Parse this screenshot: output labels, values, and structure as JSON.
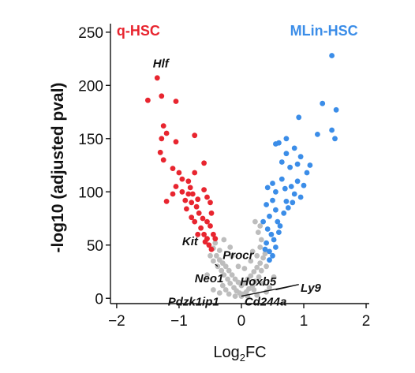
{
  "chart_data": {
    "type": "scatter",
    "xlabel_main": "Log",
    "xlabel_sub": "2",
    "xlabel_tail": "FC",
    "ylabel": "-log10 (adjusted pval)",
    "xlim": [
      -2.1,
      2.05
    ],
    "ylim": [
      -5,
      258
    ],
    "x_ticks": [
      -2,
      -1,
      0,
      1,
      2
    ],
    "x_tick_labels": [
      "−2",
      "−1",
      "0",
      "1",
      "2"
    ],
    "y_ticks": [
      0,
      50,
      100,
      150,
      200,
      250
    ],
    "y_tick_labels": [
      "0",
      "50",
      "100",
      "150",
      "200",
      "250"
    ],
    "grid": false,
    "legend": "none",
    "group_labels": [
      {
        "text": "q-HSC",
        "color": "#e8252f",
        "x": -2.0,
        "y": 247
      },
      {
        "text": "MLin-HSC",
        "color": "#3b8de8",
        "x": 0.78,
        "y": 247
      }
    ],
    "colors": {
      "up": "#e8252f",
      "down": "#3b8de8",
      "ns": "#bdbdbd"
    },
    "series": [
      {
        "name": "q-HSC",
        "color": "#e8252f",
        "points": [
          [
            -1.35,
            207
          ],
          [
            -1.5,
            186
          ],
          [
            -1.28,
            190
          ],
          [
            -1.05,
            185
          ],
          [
            -1.25,
            162
          ],
          [
            -1.2,
            155
          ],
          [
            -1.28,
            150
          ],
          [
            -1.05,
            147
          ],
          [
            -0.75,
            153
          ],
          [
            -1.3,
            137
          ],
          [
            -1.25,
            130
          ],
          [
            -1.1,
            122
          ],
          [
            -1.0,
            118
          ],
          [
            -0.95,
            112
          ],
          [
            -0.85,
            110
          ],
          [
            -0.75,
            118
          ],
          [
            -0.6,
            127
          ],
          [
            -1.05,
            105
          ],
          [
            -0.95,
            100
          ],
          [
            -0.85,
            98
          ],
          [
            -0.9,
            92
          ],
          [
            -0.8,
            90
          ],
          [
            -0.72,
            86
          ],
          [
            -0.6,
            102
          ],
          [
            -0.55,
            95
          ],
          [
            -0.5,
            90
          ],
          [
            -1.1,
            98
          ],
          [
            -1.2,
            91
          ],
          [
            -0.68,
            80
          ],
          [
            -0.62,
            75
          ],
          [
            -0.75,
            72
          ],
          [
            -0.55,
            72
          ],
          [
            -0.5,
            68
          ],
          [
            -0.65,
            66
          ],
          [
            -0.6,
            60
          ],
          [
            -0.55,
            56
          ],
          [
            -0.52,
            50
          ],
          [
            -0.48,
            46
          ],
          [
            -0.58,
            53
          ],
          [
            -0.7,
            60
          ],
          [
            -0.45,
            60
          ],
          [
            -0.42,
            56
          ],
          [
            -0.8,
            76
          ],
          [
            -0.88,
            84
          ],
          [
            -0.7,
            93
          ],
          [
            -0.78,
            98
          ],
          [
            -0.82,
            104
          ],
          [
            -0.48,
            80
          ]
        ]
      },
      {
        "name": "MLin-HSC",
        "color": "#3b8de8",
        "points": [
          [
            1.45,
            228
          ],
          [
            1.52,
            177
          ],
          [
            1.3,
            183
          ],
          [
            1.45,
            158
          ],
          [
            1.22,
            154
          ],
          [
            0.92,
            170
          ],
          [
            1.5,
            150
          ],
          [
            0.72,
            150
          ],
          [
            0.55,
            145
          ],
          [
            0.6,
            146
          ],
          [
            0.85,
            141
          ],
          [
            0.72,
            136
          ],
          [
            0.95,
            133
          ],
          [
            0.65,
            128
          ],
          [
            0.9,
            126
          ],
          [
            0.78,
            123
          ],
          [
            1.05,
            118
          ],
          [
            0.65,
            112
          ],
          [
            0.9,
            110
          ],
          [
            0.7,
            103
          ],
          [
            0.55,
            100
          ],
          [
            0.85,
            98
          ],
          [
            0.95,
            95
          ],
          [
            0.72,
            91
          ],
          [
            0.5,
            92
          ],
          [
            0.4,
            88
          ],
          [
            0.55,
            83
          ],
          [
            0.68,
            80
          ],
          [
            0.45,
            77
          ],
          [
            0.35,
            72
          ],
          [
            0.58,
            72
          ],
          [
            0.42,
            65
          ],
          [
            0.48,
            60
          ],
          [
            0.52,
            55
          ],
          [
            0.4,
            52
          ],
          [
            0.55,
            48
          ],
          [
            0.45,
            44
          ],
          [
            0.5,
            40
          ],
          [
            0.45,
            36
          ],
          [
            0.38,
            46
          ],
          [
            0.6,
            62
          ],
          [
            0.62,
            68
          ],
          [
            0.8,
            105
          ],
          [
            1.0,
            106
          ],
          [
            1.1,
            125
          ],
          [
            0.82,
            90
          ],
          [
            0.75,
            85
          ],
          [
            0.5,
            108
          ],
          [
            0.42,
            104
          ]
        ]
      },
      {
        "name": "ns",
        "color": "#bdbdbd",
        "points": [
          [
            -0.45,
            47
          ],
          [
            -0.4,
            40
          ],
          [
            -0.35,
            36
          ],
          [
            -0.3,
            33
          ],
          [
            -0.25,
            30
          ],
          [
            -0.2,
            26
          ],
          [
            -0.15,
            22
          ],
          [
            -0.1,
            18
          ],
          [
            -0.05,
            15
          ],
          [
            0.0,
            12
          ],
          [
            0.05,
            14
          ],
          [
            0.1,
            18
          ],
          [
            0.15,
            21
          ],
          [
            0.2,
            25
          ],
          [
            0.25,
            29
          ],
          [
            0.3,
            33
          ],
          [
            0.35,
            38
          ],
          [
            0.38,
            42
          ],
          [
            -0.38,
            30
          ],
          [
            -0.32,
            26
          ],
          [
            -0.28,
            22
          ],
          [
            -0.22,
            18
          ],
          [
            -0.18,
            14
          ],
          [
            -0.12,
            10
          ],
          [
            -0.08,
            7
          ],
          [
            -0.03,
            5
          ],
          [
            0.03,
            4
          ],
          [
            0.08,
            6
          ],
          [
            0.12,
            9
          ],
          [
            0.18,
            12
          ],
          [
            0.22,
            16
          ],
          [
            0.28,
            20
          ],
          [
            0.32,
            26
          ],
          [
            -0.42,
            52
          ],
          [
            -0.35,
            45
          ],
          [
            0.3,
            48
          ],
          [
            0.32,
            55
          ],
          [
            0.25,
            40
          ],
          [
            -0.5,
            40
          ],
          [
            -0.45,
            35
          ],
          [
            0.4,
            30
          ],
          [
            0.2,
            8
          ],
          [
            -0.25,
            8
          ],
          [
            0.0,
            2
          ],
          [
            -0.1,
            2
          ],
          [
            0.1,
            2
          ],
          [
            -0.3,
            12
          ],
          [
            0.35,
            14
          ],
          [
            0.27,
            62
          ],
          [
            0.3,
            68
          ],
          [
            0.22,
            72
          ],
          [
            -0.28,
            55
          ],
          [
            0.15,
            35
          ],
          [
            -0.15,
            40
          ],
          [
            0.05,
            28
          ],
          [
            -0.05,
            30
          ],
          [
            -0.2,
            4
          ],
          [
            0.25,
            3
          ],
          [
            -0.35,
            5
          ],
          [
            0.4,
            6
          ],
          [
            -0.45,
            8
          ],
          [
            0.45,
            10
          ],
          [
            -0.55,
            22
          ],
          [
            0.52,
            20
          ],
          [
            0.18,
            44
          ],
          [
            -0.18,
            48
          ]
        ]
      }
    ],
    "gene_labels": [
      {
        "text": "Hlf",
        "x": -1.42,
        "y": 217
      },
      {
        "text": "Kit",
        "x": -0.95,
        "y": 50
      },
      {
        "text": "Procr",
        "x": -0.3,
        "y": 37
      },
      {
        "text": "Neo1",
        "x": -0.75,
        "y": 15
      },
      {
        "text": "Hoxb5",
        "x": -0.02,
        "y": 12
      },
      {
        "text": "Ly9",
        "x": 0.95,
        "y": 6
      },
      {
        "text": "Pdzk1ip1",
        "x": -1.18,
        "y": -7
      },
      {
        "text": "Cd244a",
        "x": 0.05,
        "y": -7
      }
    ],
    "leader_lines": [
      {
        "from": [
          -0.42,
          32
        ],
        "to": [
          -0.38,
          30
        ]
      },
      {
        "from": [
          0.55,
          8
        ],
        "to": [
          0.92,
          13
        ]
      },
      {
        "from": [
          0.0,
          2
        ],
        "to": [
          0.92,
          13
        ]
      }
    ]
  }
}
